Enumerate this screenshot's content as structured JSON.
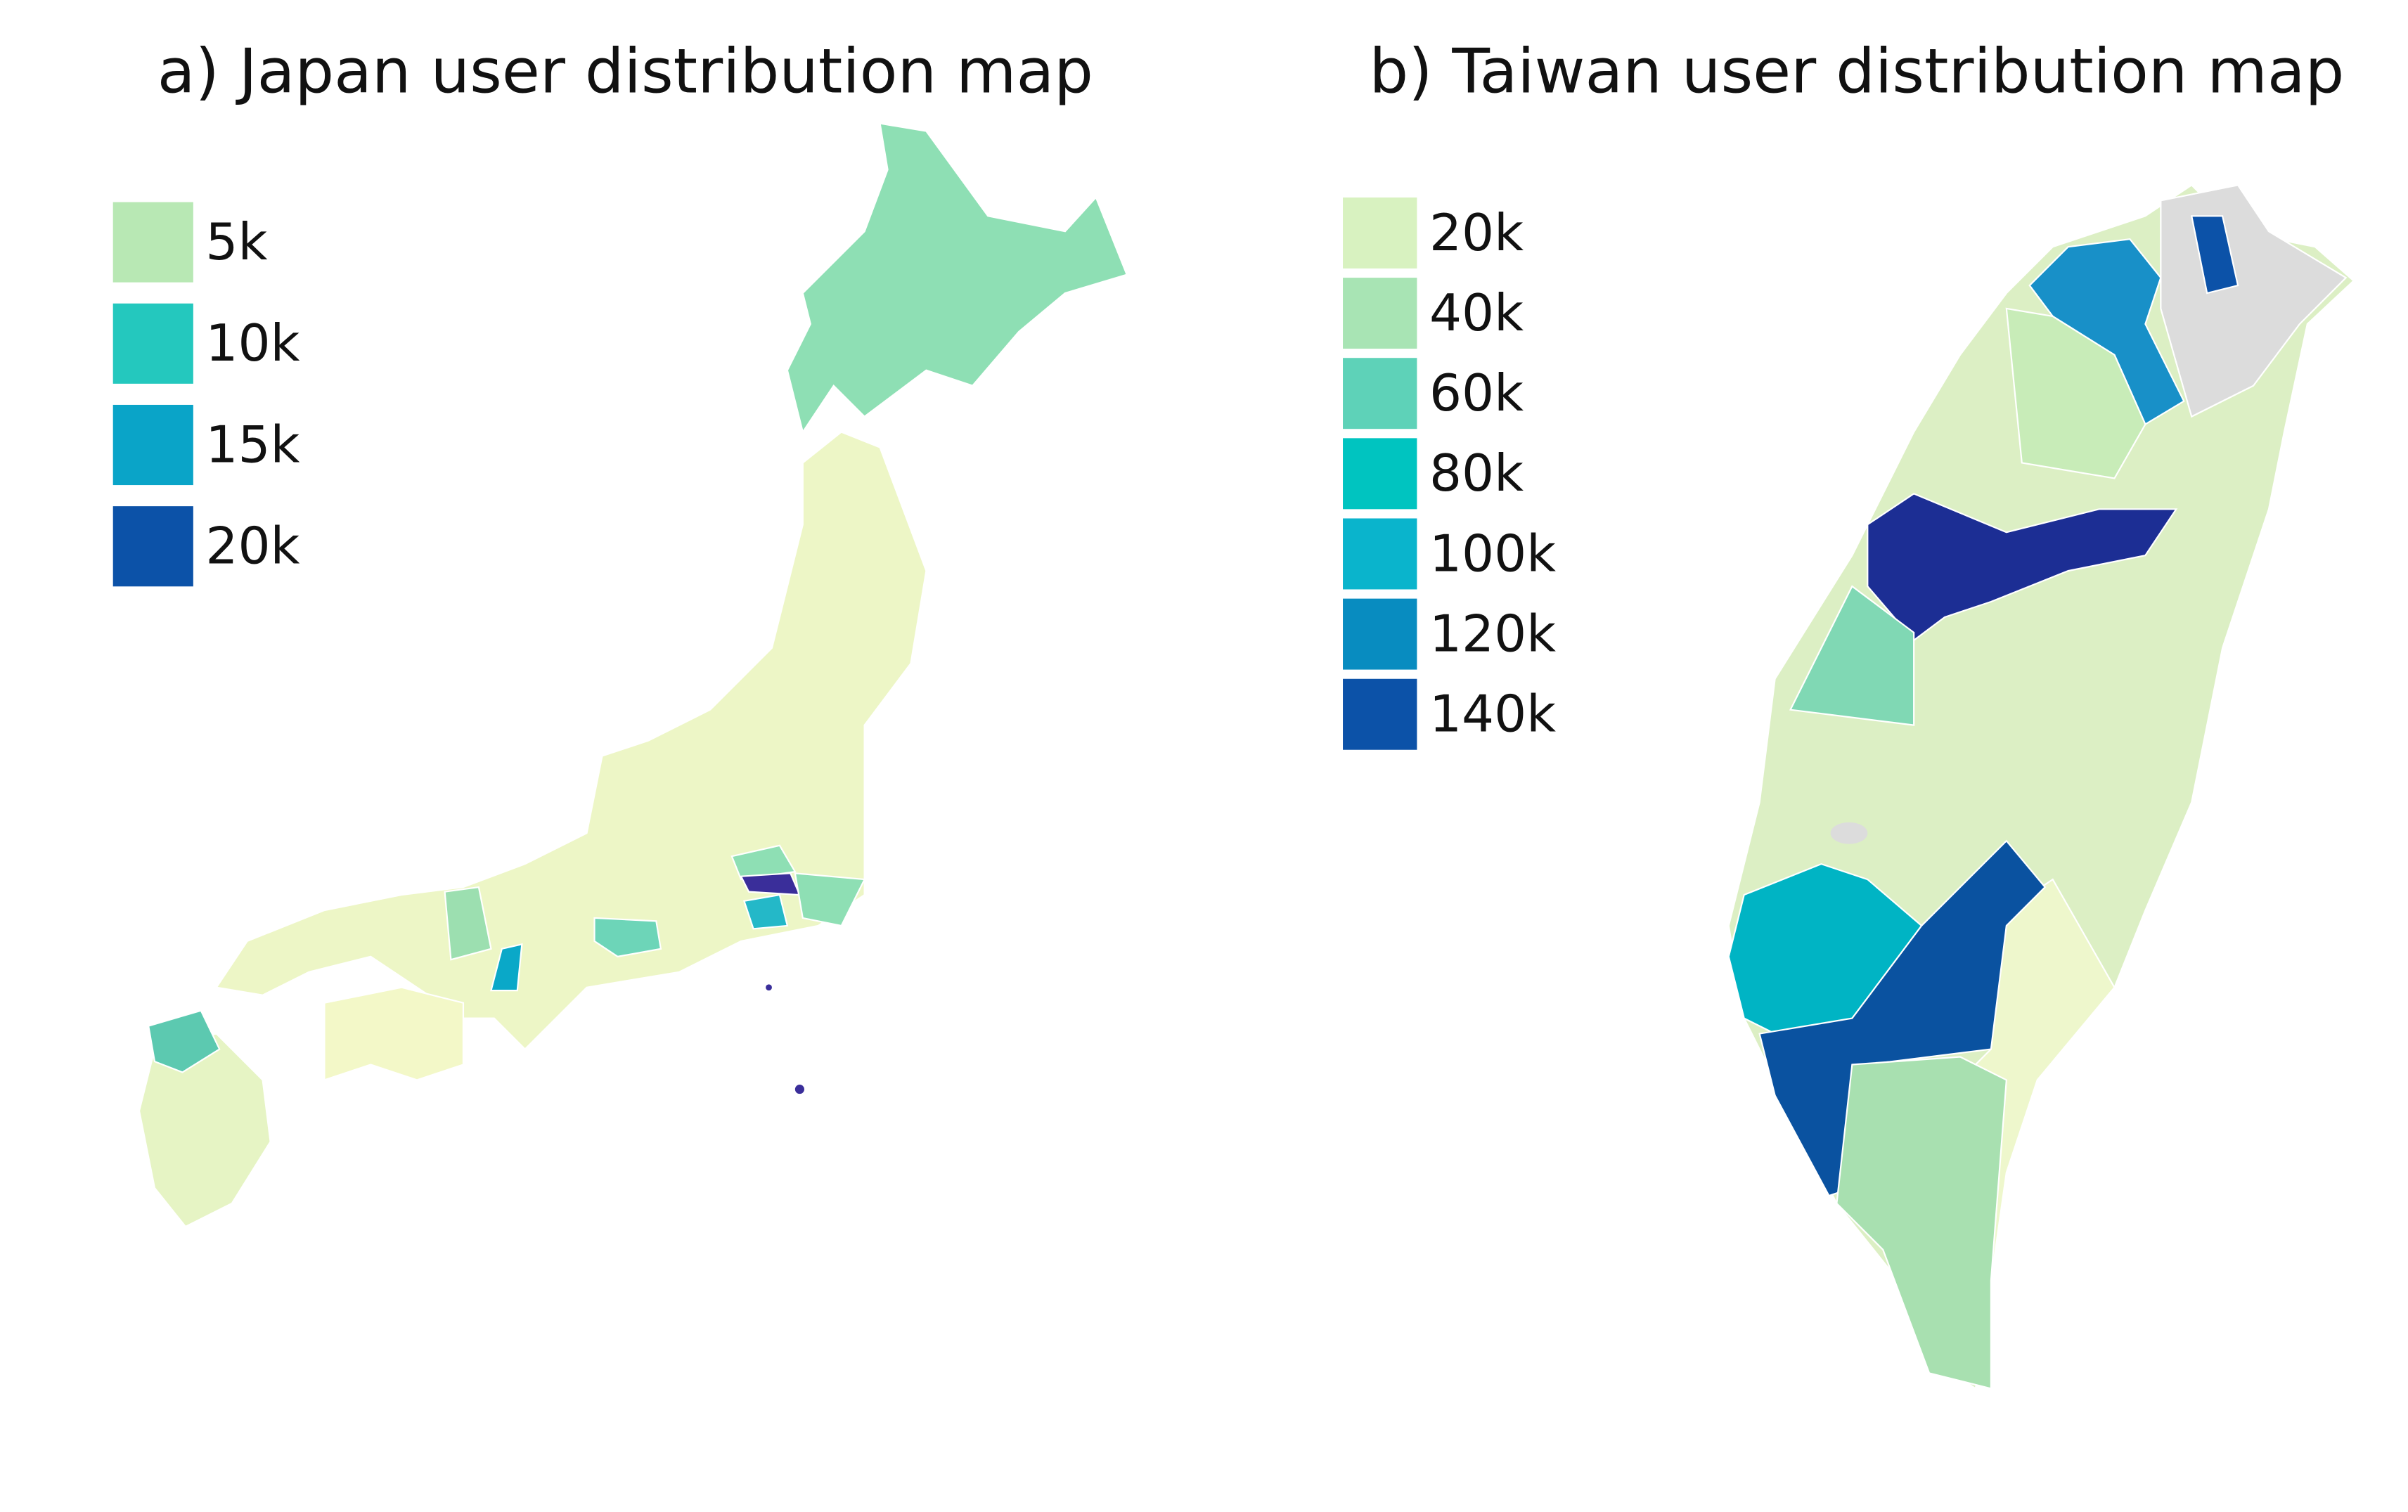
{
  "maps": [
    {
      "title": "a) Japan user distribution map",
      "legend": [
        {
          "label": "5k",
          "color": "#b8e8b4"
        },
        {
          "label": "10k",
          "color": "#24c8be"
        },
        {
          "label": "15k",
          "color": "#0aa4c8"
        },
        {
          "label": "20k",
          "color": "#0c52a8"
        }
      ]
    },
    {
      "title": "b) Taiwan user distribution map",
      "legend": [
        {
          "label": "20k",
          "color": "#d8f2c0"
        },
        {
          "label": "40k",
          "color": "#a8e4b4"
        },
        {
          "label": "60k",
          "color": "#5ed2b8"
        },
        {
          "label": "80k",
          "color": "#00c4c0"
        },
        {
          "label": "100k",
          "color": "#0ab4cc"
        },
        {
          "label": "120k",
          "color": "#088cc0"
        },
        {
          "label": "140k",
          "color": "#0c52a8"
        }
      ]
    }
  ]
}
